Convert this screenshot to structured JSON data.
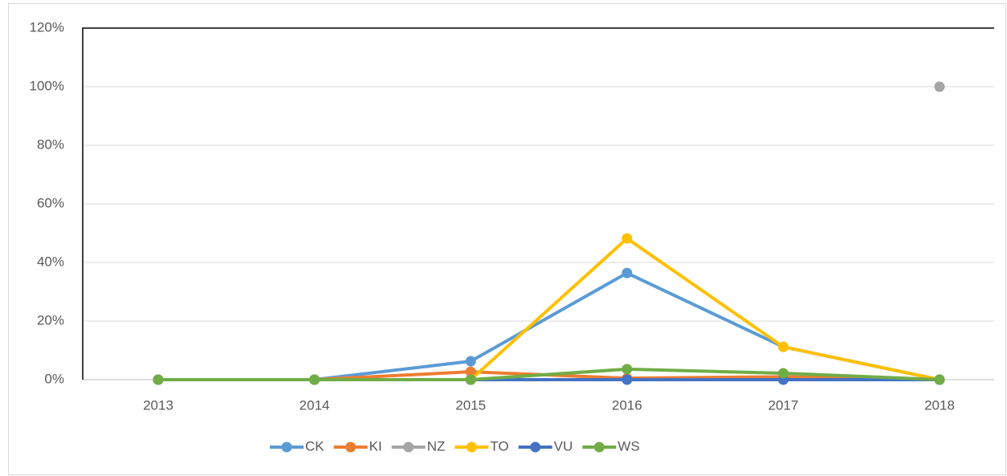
{
  "chart_data": {
    "type": "line",
    "categories": [
      "2013",
      "2014",
      "2015",
      "2016",
      "2017",
      "2018"
    ],
    "series": [
      {
        "name": "CK",
        "color": "#5b9bd5",
        "values": [
          0,
          0,
          6.3,
          36.4,
          11.2,
          0
        ]
      },
      {
        "name": "KI",
        "color": "#ed7d31",
        "values": [
          0,
          0,
          2.7,
          0.5,
          1,
          0
        ]
      },
      {
        "name": "NZ",
        "color": "#a5a5a5",
        "values": [
          null,
          null,
          null,
          null,
          null,
          100
        ]
      },
      {
        "name": "TO",
        "color": "#ffc000",
        "values": [
          0,
          0,
          0,
          48.2,
          11.2,
          0
        ]
      },
      {
        "name": "VU",
        "color": "#4472c4",
        "values": [
          0,
          0,
          0,
          0,
          0,
          0
        ]
      },
      {
        "name": "WS",
        "color": "#70ad47",
        "values": [
          0,
          0,
          0,
          3.6,
          2.2,
          0
        ]
      }
    ],
    "ylim": [
      0,
      120
    ],
    "yticks": [
      {
        "value": 0,
        "label": "0%"
      },
      {
        "value": 20,
        "label": "20%"
      },
      {
        "value": 40,
        "label": "40%"
      },
      {
        "value": 60,
        "label": "60%"
      },
      {
        "value": 80,
        "label": "80%"
      },
      {
        "value": 100,
        "label": "100%"
      },
      {
        "value": 120,
        "label": "120%"
      }
    ],
    "grid": true,
    "legend": "bottom"
  }
}
